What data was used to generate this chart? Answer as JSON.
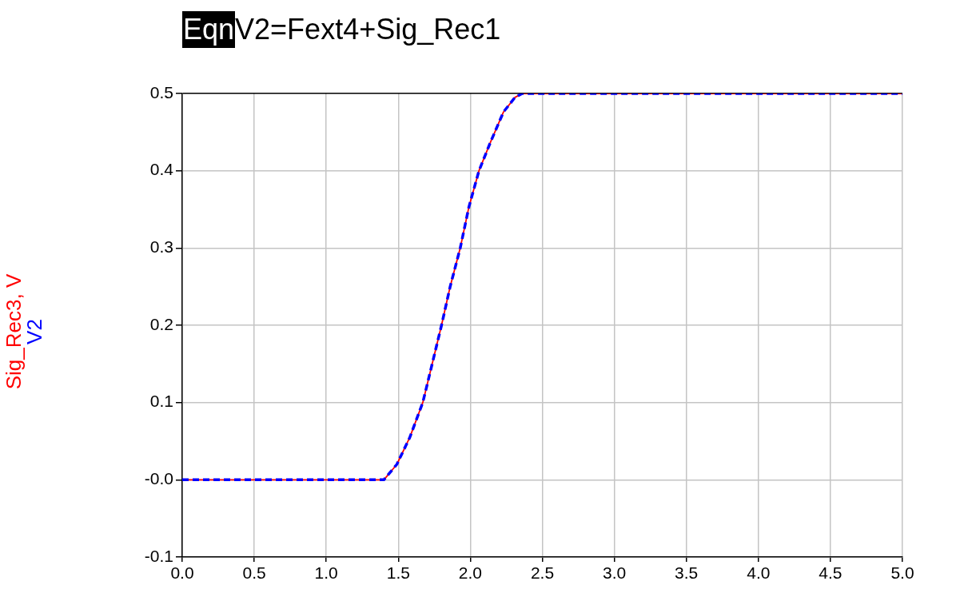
{
  "chart_data": {
    "type": "line",
    "title": "V2=Fext4+Sig_Rec1",
    "annotations": [
      "Eqn"
    ],
    "x": [
      0,
      0.5,
      1,
      1.4,
      1.49,
      1.58,
      1.67,
      1.73,
      1.8,
      1.86,
      1.93,
      1.99,
      2.06,
      2.14,
      2.23,
      2.31,
      2.36,
      3,
      4,
      5
    ],
    "series": [
      {
        "name": "V2",
        "color": "#0000ff",
        "line_style": "dashed",
        "values": [
          0,
          0,
          0,
          0,
          0.02,
          0.055,
          0.1,
          0.146,
          0.2,
          0.25,
          0.3,
          0.353,
          0.4,
          0.437,
          0.476,
          0.495,
          0.5,
          0.5,
          0.5,
          0.5
        ]
      },
      {
        "name": "Sig_Rec3, V",
        "color": "#ff0000",
        "line_style": "solid",
        "values": [
          0,
          0,
          0,
          0,
          0.02,
          0.055,
          0.1,
          0.146,
          0.2,
          0.25,
          0.3,
          0.353,
          0.4,
          0.437,
          0.476,
          0.495,
          0.5,
          0.5,
          0.5,
          0.5
        ]
      }
    ],
    "xlim": [
      0,
      5
    ],
    "xticks": [
      {
        "value": 0,
        "label": "0.0"
      },
      {
        "value": 0.5,
        "label": "0.5"
      },
      {
        "value": 1,
        "label": "1.0"
      },
      {
        "value": 1.5,
        "label": "1.5"
      },
      {
        "value": 2,
        "label": "2.0"
      },
      {
        "value": 2.5,
        "label": "2.5"
      },
      {
        "value": 3,
        "label": "3.0"
      },
      {
        "value": 3.5,
        "label": "3.5"
      },
      {
        "value": 4,
        "label": "4.0"
      },
      {
        "value": 4.5,
        "label": "4.5"
      },
      {
        "value": 5,
        "label": "5.0"
      }
    ],
    "ylim": [
      -0.1,
      0.5
    ],
    "yticks": [
      -0.1,
      {
        "value": 0,
        "label": "-0.0"
      },
      0.1,
      0.2,
      0.3,
      0.4,
      0.5
    ],
    "grid": true,
    "legend": "left",
    "marker": "none"
  }
}
